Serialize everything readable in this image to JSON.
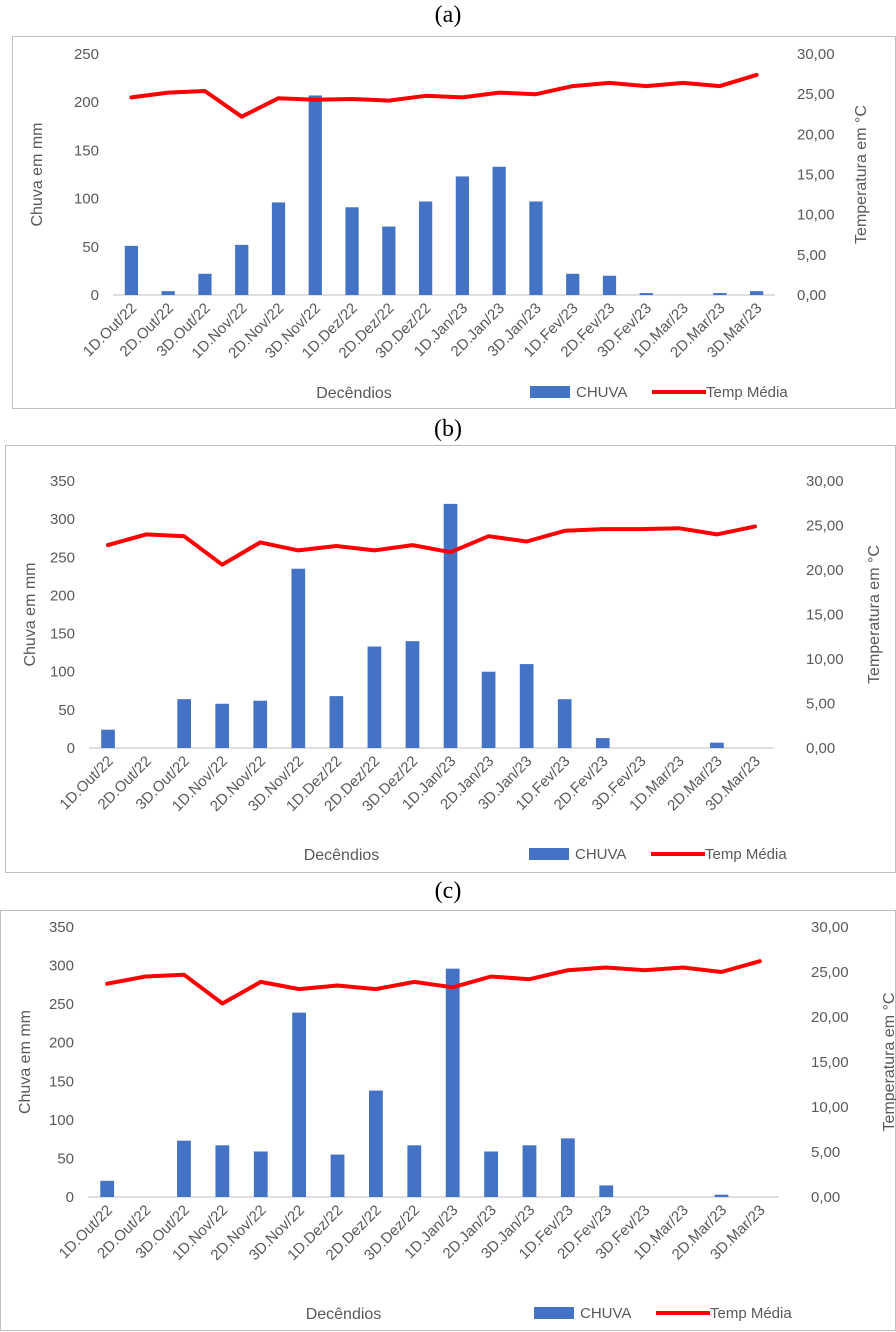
{
  "panels": [
    {
      "label": "(a)"
    },
    {
      "label": "(b)"
    },
    {
      "label": "(c)"
    }
  ],
  "colors": {
    "bar": "#4472C4",
    "line": "#FF0000",
    "axis_text": "#595959",
    "gridline": "#d9d9d9"
  },
  "chart_data": [
    {
      "type": "bar",
      "title": "",
      "categories": [
        "1D.Out/22",
        "2D.Out/22",
        "3D.Out/22",
        "1D.Nov/22",
        "2D.Nov/22",
        "3D.Nov/22",
        "1D.Dez/22",
        "2D.Dez/22",
        "3D.Dez/22",
        "1D.Jan/23",
        "2D.Jan/23",
        "3D.Jan/23",
        "1D.Fev/23",
        "2D.Fev/23",
        "3D.Fev/23",
        "1D.Mar/23",
        "2D.Mar/23",
        "3D.Mar/23"
      ],
      "series": [
        {
          "name": "CHUVA",
          "kind": "bar",
          "axis": "left",
          "values": [
            51,
            4,
            22,
            52,
            96,
            207,
            91,
            71,
            97,
            123,
            133,
            97,
            22,
            20,
            2,
            0,
            2,
            4
          ]
        },
        {
          "name": "Temp Média",
          "kind": "line",
          "axis": "right",
          "values": [
            24.6,
            25.2,
            25.4,
            22.2,
            24.5,
            24.3,
            24.4,
            24.2,
            24.8,
            24.6,
            25.2,
            25.0,
            26.0,
            26.4,
            26.0,
            26.4,
            26.0,
            27.4
          ]
        }
      ],
      "xlabel": "Decêndios",
      "ylabel": "Chuva em mm",
      "y2label": "Temperatura em °C",
      "ylim": [
        0,
        250
      ],
      "yticks": [
        "0",
        "50",
        "100",
        "150",
        "200",
        "250"
      ],
      "y2lim": [
        0,
        30
      ],
      "y2ticks": [
        "0,00",
        "5,00",
        "10,00",
        "15,00",
        "20,00",
        "25,00",
        "30,00"
      ],
      "grid": false,
      "legend": "bottom-right"
    },
    {
      "type": "bar",
      "title": "",
      "categories": [
        "1D.Out/22",
        "2D.Out/22",
        "3D.Out/22",
        "1D.Nov/22",
        "2D.Nov/22",
        "3D.Nov/22",
        "1D.Dez/22",
        "2D.Dez/22",
        "3D.Dez/22",
        "1D.Jan/23",
        "2D.Jan/23",
        "3D.Jan/23",
        "1D.Fev/23",
        "2D.Fev/23",
        "3D.Fev/23",
        "1D.Mar/23",
        "2D.Mar/23",
        "3D.Mar/23"
      ],
      "series": [
        {
          "name": "CHUVA",
          "kind": "bar",
          "axis": "left",
          "values": [
            24,
            0,
            64,
            58,
            62,
            235,
            68,
            133,
            140,
            320,
            100,
            110,
            64,
            13,
            0,
            0,
            7,
            0
          ]
        },
        {
          "name": "Temp Média",
          "kind": "line",
          "axis": "right",
          "values": [
            22.8,
            24.0,
            23.8,
            20.6,
            23.1,
            22.2,
            22.7,
            22.2,
            22.8,
            22.0,
            23.8,
            23.2,
            24.4,
            24.6,
            24.6,
            24.7,
            24.0,
            24.9
          ]
        }
      ],
      "xlabel": "Decêndios",
      "ylabel": "Chuva em mm",
      "y2label": "Temperatura em °C",
      "ylim": [
        0,
        350
      ],
      "yticks": [
        "0",
        "50",
        "100",
        "150",
        "200",
        "250",
        "300",
        "350"
      ],
      "y2lim": [
        0,
        30
      ],
      "y2ticks": [
        "0,00",
        "5,00",
        "10,00",
        "15,00",
        "20,00",
        "25,00",
        "30,00"
      ],
      "grid": false,
      "legend": "bottom-right"
    },
    {
      "type": "bar",
      "title": "",
      "categories": [
        "1D.Out/22",
        "2D.Out/22",
        "3D.Out/22",
        "1D.Nov/22",
        "2D.Nov/22",
        "3D.Nov/22",
        "1D.Dez/22",
        "2D.Dez/22",
        "3D.Dez/22",
        "1D.Jan/23",
        "2D.Jan/23",
        "3D.Jan/23",
        "1D.Fev/23",
        "2D.Fev/23",
        "3D.Fev/23",
        "1D.Mar/23",
        "2D.Mar/23",
        "3D.Mar/23"
      ],
      "series": [
        {
          "name": "CHUVA",
          "kind": "bar",
          "axis": "left",
          "values": [
            21,
            0,
            73,
            67,
            59,
            239,
            55,
            138,
            67,
            296,
            59,
            67,
            76,
            15,
            0,
            0,
            3,
            0
          ]
        },
        {
          "name": "Temp Média",
          "kind": "line",
          "axis": "right",
          "values": [
            23.7,
            24.5,
            24.7,
            21.5,
            23.9,
            23.1,
            23.5,
            23.1,
            23.9,
            23.3,
            24.5,
            24.2,
            25.2,
            25.5,
            25.2,
            25.5,
            25.0,
            26.2
          ]
        }
      ],
      "xlabel": "Decêndios",
      "ylabel": "Chuva em mm",
      "y2label": "Temperatura em °C",
      "ylim": [
        0,
        350
      ],
      "yticks": [
        "0",
        "50",
        "100",
        "150",
        "200",
        "250",
        "300",
        "350"
      ],
      "y2lim": [
        0,
        30
      ],
      "y2ticks": [
        "0,00",
        "5,00",
        "10,00",
        "15,00",
        "20,00",
        "25,00",
        "30,00"
      ],
      "grid": false,
      "legend": "bottom-right"
    }
  ]
}
